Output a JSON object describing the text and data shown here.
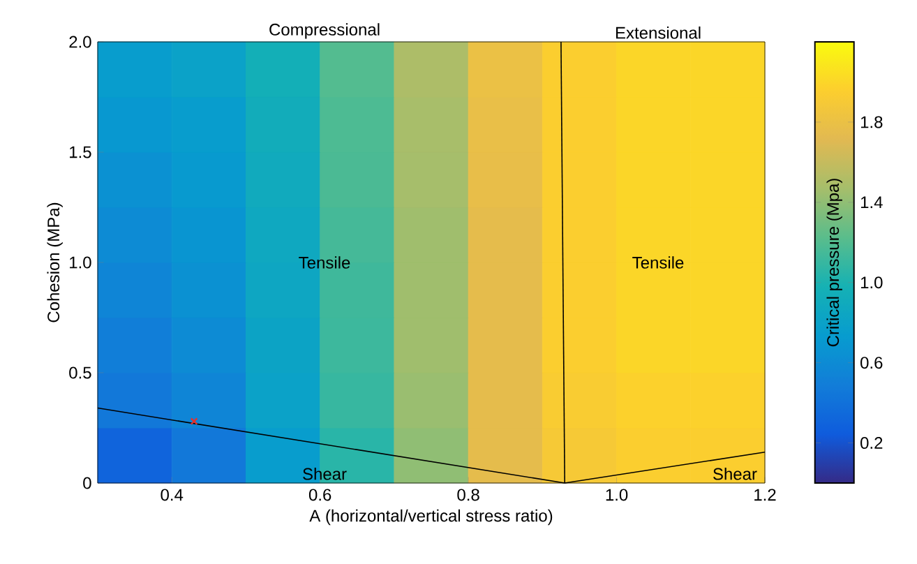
{
  "chart_data": {
    "type": "heatmap",
    "xlabel": "A (horizontal/vertical stress ratio)",
    "ylabel": "Cohesion (MPa)",
    "clabel": "Critical pressure (Mpa)",
    "x": [
      0.35,
      0.45,
      0.55,
      0.65,
      0.75,
      0.85,
      0.95,
      1.05,
      1.15
    ],
    "y": [
      1.875,
      1.625,
      1.375,
      1.125,
      0.875,
      0.625,
      0.375,
      0.125
    ],
    "cells": [
      [
        0.75,
        0.8,
        0.95,
        1.2,
        1.5,
        1.8,
        1.95,
        2.0,
        2.0
      ],
      [
        0.7,
        0.75,
        0.92,
        1.18,
        1.48,
        1.78,
        1.95,
        2.0,
        2.0
      ],
      [
        0.65,
        0.72,
        0.9,
        1.17,
        1.47,
        1.77,
        1.95,
        2.0,
        2.0
      ],
      [
        0.6,
        0.68,
        0.87,
        1.15,
        1.45,
        1.75,
        1.95,
        2.0,
        2.0
      ],
      [
        0.55,
        0.65,
        0.85,
        1.13,
        1.45,
        1.75,
        1.95,
        2.0,
        2.0
      ],
      [
        0.5,
        0.6,
        0.82,
        1.12,
        1.45,
        1.75,
        1.95,
        2.0,
        2.0
      ],
      [
        0.45,
        0.55,
        0.8,
        1.1,
        1.43,
        1.75,
        1.93,
        1.97,
        1.97
      ],
      [
        0.3,
        0.45,
        0.75,
        1.05,
        1.4,
        1.75,
        1.9,
        1.95,
        1.95
      ]
    ],
    "clim": [
      0,
      2.2
    ],
    "cticks": [
      0.2,
      0.6,
      {
        "value": 1.0,
        "label": "1.0"
      },
      1.4,
      1.8
    ],
    "xlim": [
      0.3,
      1.2
    ],
    "ylim": [
      0,
      2.0
    ],
    "xticks": [
      0.4,
      0.6,
      0.8,
      {
        "value": 1.0,
        "label": "1.0"
      },
      1.2
    ],
    "yticks": [
      0,
      0.5,
      {
        "value": 1.0,
        "label": "1.0"
      },
      1.5,
      {
        "value": 2.0,
        "label": "2.0"
      }
    ],
    "series": [
      {
        "type": "line",
        "color": "#000000",
        "x": [
          0.3,
          0.93,
          1.2
        ],
        "values": [
          0.34,
          0,
          0.14
        ]
      },
      {
        "type": "line",
        "color": "#000000",
        "x": [
          0.93,
          0.925
        ],
        "values": [
          0,
          2.0
        ]
      },
      {
        "type": "scatter",
        "color": "#e8302a",
        "marker": "cross",
        "x": [
          0.43
        ],
        "values": [
          0.28
        ]
      }
    ],
    "annotations": [
      "Compressional",
      "Extensional",
      "Tensile",
      "Tensile",
      "Shear",
      "Shear"
    ],
    "grid": false
  }
}
